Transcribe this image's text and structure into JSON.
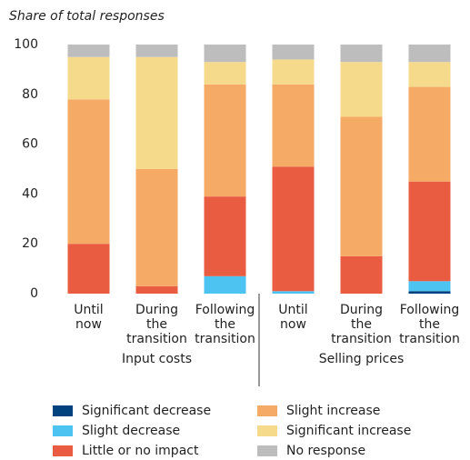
{
  "chart_data": {
    "type": "stacked_bar",
    "title": "Share of total responses",
    "categories": [
      "Until now",
      "During the transition",
      "Following the transition",
      "Until now",
      "During the transition",
      "Following the transition"
    ],
    "groups": [
      "Input costs",
      "Selling prices"
    ],
    "series": [
      {
        "name": "Significant decrease",
        "color": "#00427f",
        "values": [
          0,
          0,
          0,
          0,
          0,
          1
        ]
      },
      {
        "name": "Slight decrease",
        "color": "#4dc3f2",
        "values": [
          0,
          0,
          7,
          1,
          0,
          4
        ]
      },
      {
        "name": "Little or no impact",
        "color": "#e95c42",
        "values": [
          20,
          3,
          32,
          50,
          15,
          40
        ]
      },
      {
        "name": "Slight increase",
        "color": "#f5aa66",
        "values": [
          58,
          47,
          45,
          33,
          56,
          38
        ]
      },
      {
        "name": "Significant increase",
        "color": "#f6da8c",
        "values": [
          17,
          45,
          9,
          10,
          22,
          10
        ]
      },
      {
        "name": "No response",
        "color": "#bdbdbd",
        "values": [
          5,
          5,
          7,
          6,
          7,
          7
        ]
      }
    ],
    "ylim": [
      0,
      100
    ],
    "yticks": [
      0,
      20,
      40,
      60,
      80,
      100
    ],
    "grid": false
  }
}
